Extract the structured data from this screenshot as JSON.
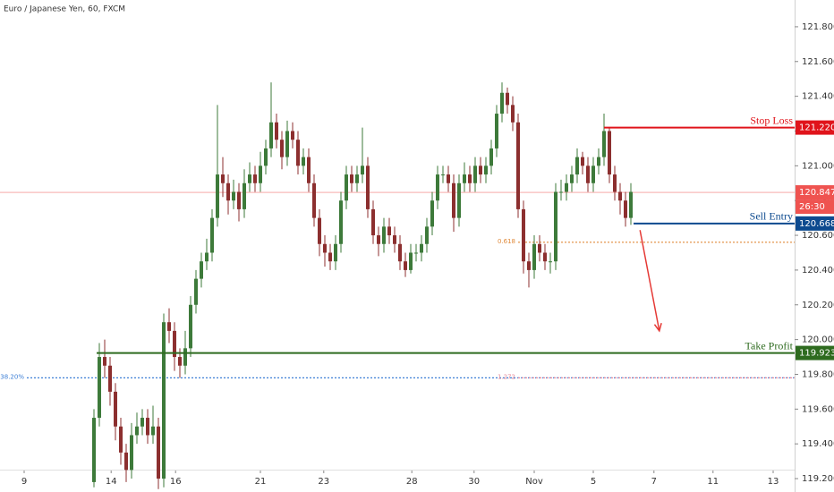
{
  "chart_data": {
    "type": "candlestick",
    "title": "Euro / Japanese Yen, 60, FXCM",
    "up_color": "#3d7a3a",
    "down_color": "#8c2f2f",
    "open": [
      119.18,
      119.55,
      119.9,
      119.85,
      119.7,
      119.5,
      119.35,
      119.25,
      119.45,
      119.5,
      119.55,
      119.45,
      119.5,
      119.2,
      120.1,
      120.05,
      119.9,
      119.85,
      119.95,
      120.2,
      120.35,
      120.45,
      120.5,
      120.7,
      120.95,
      120.9,
      120.8,
      120.85,
      120.75,
      120.9,
      120.95,
      120.9,
      121.0,
      121.1,
      121.25,
      121.15,
      121.05,
      121.2,
      121.15,
      121.0,
      121.05,
      120.9,
      120.7,
      120.55,
      120.5,
      120.45,
      120.55,
      120.8,
      120.95,
      120.9,
      120.95,
      121.0,
      120.75,
      120.6,
      120.55,
      120.65,
      120.6,
      120.55,
      120.45,
      120.4,
      120.5,
      120.5,
      120.55,
      120.65,
      120.8,
      120.95,
      120.95,
      120.9,
      120.7,
      120.9,
      120.95,
      120.9,
      121.0,
      120.95,
      121.0,
      121.1,
      121.3,
      121.42,
      121.35,
      121.25,
      120.75,
      120.45,
      120.4,
      120.55,
      120.5,
      120.45,
      120.45,
      120.85,
      120.85,
      120.9,
      120.95,
      121.05,
      121.0,
      120.9,
      121.0,
      121.05,
      121.2,
      120.95,
      120.85,
      120.8,
      120.7
    ],
    "high": [
      119.6,
      119.98,
      120.0,
      119.9,
      119.75,
      119.55,
      119.4,
      119.52,
      119.58,
      119.6,
      119.6,
      119.62,
      119.55,
      120.15,
      120.18,
      120.1,
      119.95,
      120.05,
      120.25,
      120.4,
      120.5,
      120.58,
      120.75,
      121.35,
      121.05,
      120.95,
      120.92,
      120.9,
      120.98,
      121.02,
      121.0,
      121.08,
      121.15,
      121.48,
      121.3,
      121.2,
      121.26,
      121.25,
      121.2,
      121.1,
      121.1,
      120.95,
      120.75,
      120.6,
      120.55,
      120.6,
      120.85,
      121.0,
      121.0,
      121.0,
      121.22,
      121.05,
      120.8,
      120.65,
      120.7,
      120.7,
      120.65,
      120.6,
      120.5,
      120.55,
      120.55,
      120.6,
      120.7,
      120.85,
      121.0,
      121.0,
      121.0,
      120.95,
      120.95,
      121.02,
      121.0,
      121.05,
      121.05,
      121.05,
      121.15,
      121.35,
      121.48,
      121.45,
      121.4,
      121.3,
      120.8,
      120.5,
      120.6,
      120.6,
      120.55,
      120.5,
      120.9,
      120.92,
      120.95,
      121.0,
      121.1,
      121.08,
      121.05,
      121.05,
      121.1,
      121.3,
      121.22,
      121.0,
      120.9,
      120.85,
      120.9
    ],
    "low": [
      119.15,
      119.5,
      119.78,
      119.62,
      119.42,
      119.28,
      119.18,
      119.2,
      119.4,
      119.45,
      119.4,
      119.4,
      119.14,
      119.15,
      119.98,
      119.82,
      119.78,
      119.8,
      119.9,
      120.15,
      120.3,
      120.4,
      120.45,
      120.65,
      120.82,
      120.72,
      120.75,
      120.68,
      120.7,
      120.85,
      120.85,
      120.85,
      120.95,
      121.05,
      121.1,
      120.98,
      121.0,
      121.1,
      120.95,
      120.95,
      120.85,
      120.65,
      120.48,
      120.42,
      120.4,
      120.4,
      120.5,
      120.75,
      120.85,
      120.85,
      120.9,
      120.7,
      120.55,
      120.48,
      120.5,
      120.55,
      120.5,
      120.4,
      120.36,
      120.38,
      120.45,
      120.45,
      120.5,
      120.6,
      120.75,
      120.9,
      120.85,
      120.62,
      120.65,
      120.85,
      120.85,
      120.85,
      120.9,
      120.9,
      120.95,
      121.05,
      121.25,
      121.3,
      121.2,
      120.7,
      120.38,
      120.3,
      120.35,
      120.45,
      120.4,
      120.38,
      120.4,
      120.8,
      120.8,
      120.85,
      120.9,
      120.95,
      120.85,
      120.85,
      120.95,
      121.0,
      120.9,
      120.8,
      120.72,
      120.65,
      120.66
    ],
    "close": [
      119.55,
      119.9,
      119.85,
      119.7,
      119.5,
      119.35,
      119.25,
      119.45,
      119.5,
      119.55,
      119.45,
      119.5,
      119.2,
      120.1,
      120.05,
      119.9,
      119.85,
      119.95,
      120.2,
      120.35,
      120.45,
      120.5,
      120.7,
      120.95,
      120.9,
      120.8,
      120.85,
      120.75,
      120.9,
      120.95,
      120.9,
      121.0,
      121.1,
      121.25,
      121.15,
      121.05,
      121.2,
      121.15,
      121.0,
      121.05,
      120.9,
      120.7,
      120.55,
      120.5,
      120.45,
      120.55,
      120.8,
      120.95,
      120.9,
      120.95,
      121.0,
      120.75,
      120.6,
      120.55,
      120.65,
      120.6,
      120.55,
      120.45,
      120.4,
      120.5,
      120.5,
      120.55,
      120.65,
      120.8,
      120.95,
      120.95,
      120.9,
      120.7,
      120.9,
      120.95,
      120.9,
      121.0,
      120.95,
      121.0,
      121.1,
      121.3,
      121.42,
      121.35,
      121.25,
      120.75,
      120.45,
      120.4,
      120.55,
      120.5,
      120.45,
      120.45,
      120.85,
      120.85,
      120.9,
      120.95,
      121.05,
      121.0,
      120.9,
      121.0,
      121.05,
      121.2,
      120.95,
      120.85,
      120.8,
      120.7,
      120.85
    ],
    "xlim": [
      -17.5,
      130.5
    ],
    "xticks": [
      {
        "value": -13,
        "label": "9"
      },
      {
        "value": 3.2,
        "label": "14"
      },
      {
        "value": 15.2,
        "label": "16"
      },
      {
        "value": 31,
        "label": "21"
      },
      {
        "value": 42.8,
        "label": "23"
      },
      {
        "value": 59.2,
        "label": "28"
      },
      {
        "value": 70.8,
        "label": "30"
      },
      {
        "value": 82,
        "label": "Nov"
      },
      {
        "value": 93,
        "label": "5"
      },
      {
        "value": 104.3,
        "label": "7"
      },
      {
        "value": 115.3,
        "label": "11"
      },
      {
        "value": 126.5,
        "label": "13"
      }
    ],
    "ylim": [
      119.123,
      121.954
    ],
    "yticks": [
      {
        "value": 119.2,
        "label": "119.200"
      },
      {
        "value": 119.4,
        "label": "119.400"
      },
      {
        "value": 119.6,
        "label": "119.600"
      },
      {
        "value": 119.8,
        "label": "119.800"
      },
      {
        "value": 120.0,
        "label": "120.000"
      },
      {
        "value": 120.2,
        "label": "120.200"
      },
      {
        "value": 120.4,
        "label": "120.400"
      },
      {
        "value": 120.6,
        "label": "120.600"
      },
      {
        "value": 120.8,
        "label": "120.800"
      },
      {
        "value": 121.0,
        "label": "121.000"
      },
      {
        "value": 121.2,
        "label": "121.200"
      },
      {
        "value": 121.4,
        "label": "121.400"
      },
      {
        "value": 121.6,
        "label": "121.600"
      },
      {
        "value": 121.8,
        "label": "121.800"
      }
    ],
    "current_price": {
      "value": 120.847,
      "value_label": "120.847",
      "countdown": "26:30",
      "color": "#ef5350"
    },
    "levels": [
      {
        "label": "Stop Loss",
        "value": 121.22,
        "value_label": "121.220",
        "start": 95,
        "color": "#e0141b"
      },
      {
        "label": "Sell Entry",
        "value": 120.668,
        "value_label": "120.668",
        "start": 100.5,
        "color": "#0d4a8f"
      },
      {
        "label": "Take Profit",
        "value": 119.923,
        "value_label": "119.923",
        "start": 0.5,
        "color": "#2e6b1f"
      }
    ],
    "fib_levels": [
      {
        "label": "38.20%",
        "value": 119.78,
        "start": -12.5,
        "color": "#3d7fd6"
      },
      {
        "label": "0.618",
        "value": 120.56,
        "start": 79,
        "color": "#e08a3a"
      },
      {
        "label": "1.272",
        "value": 119.78,
        "start": 79,
        "color": "#e88a9a"
      }
    ],
    "arrow": {
      "from": [
        101.7,
        120.63
      ],
      "to": [
        105.3,
        120.05
      ],
      "color": "#e53935"
    }
  }
}
